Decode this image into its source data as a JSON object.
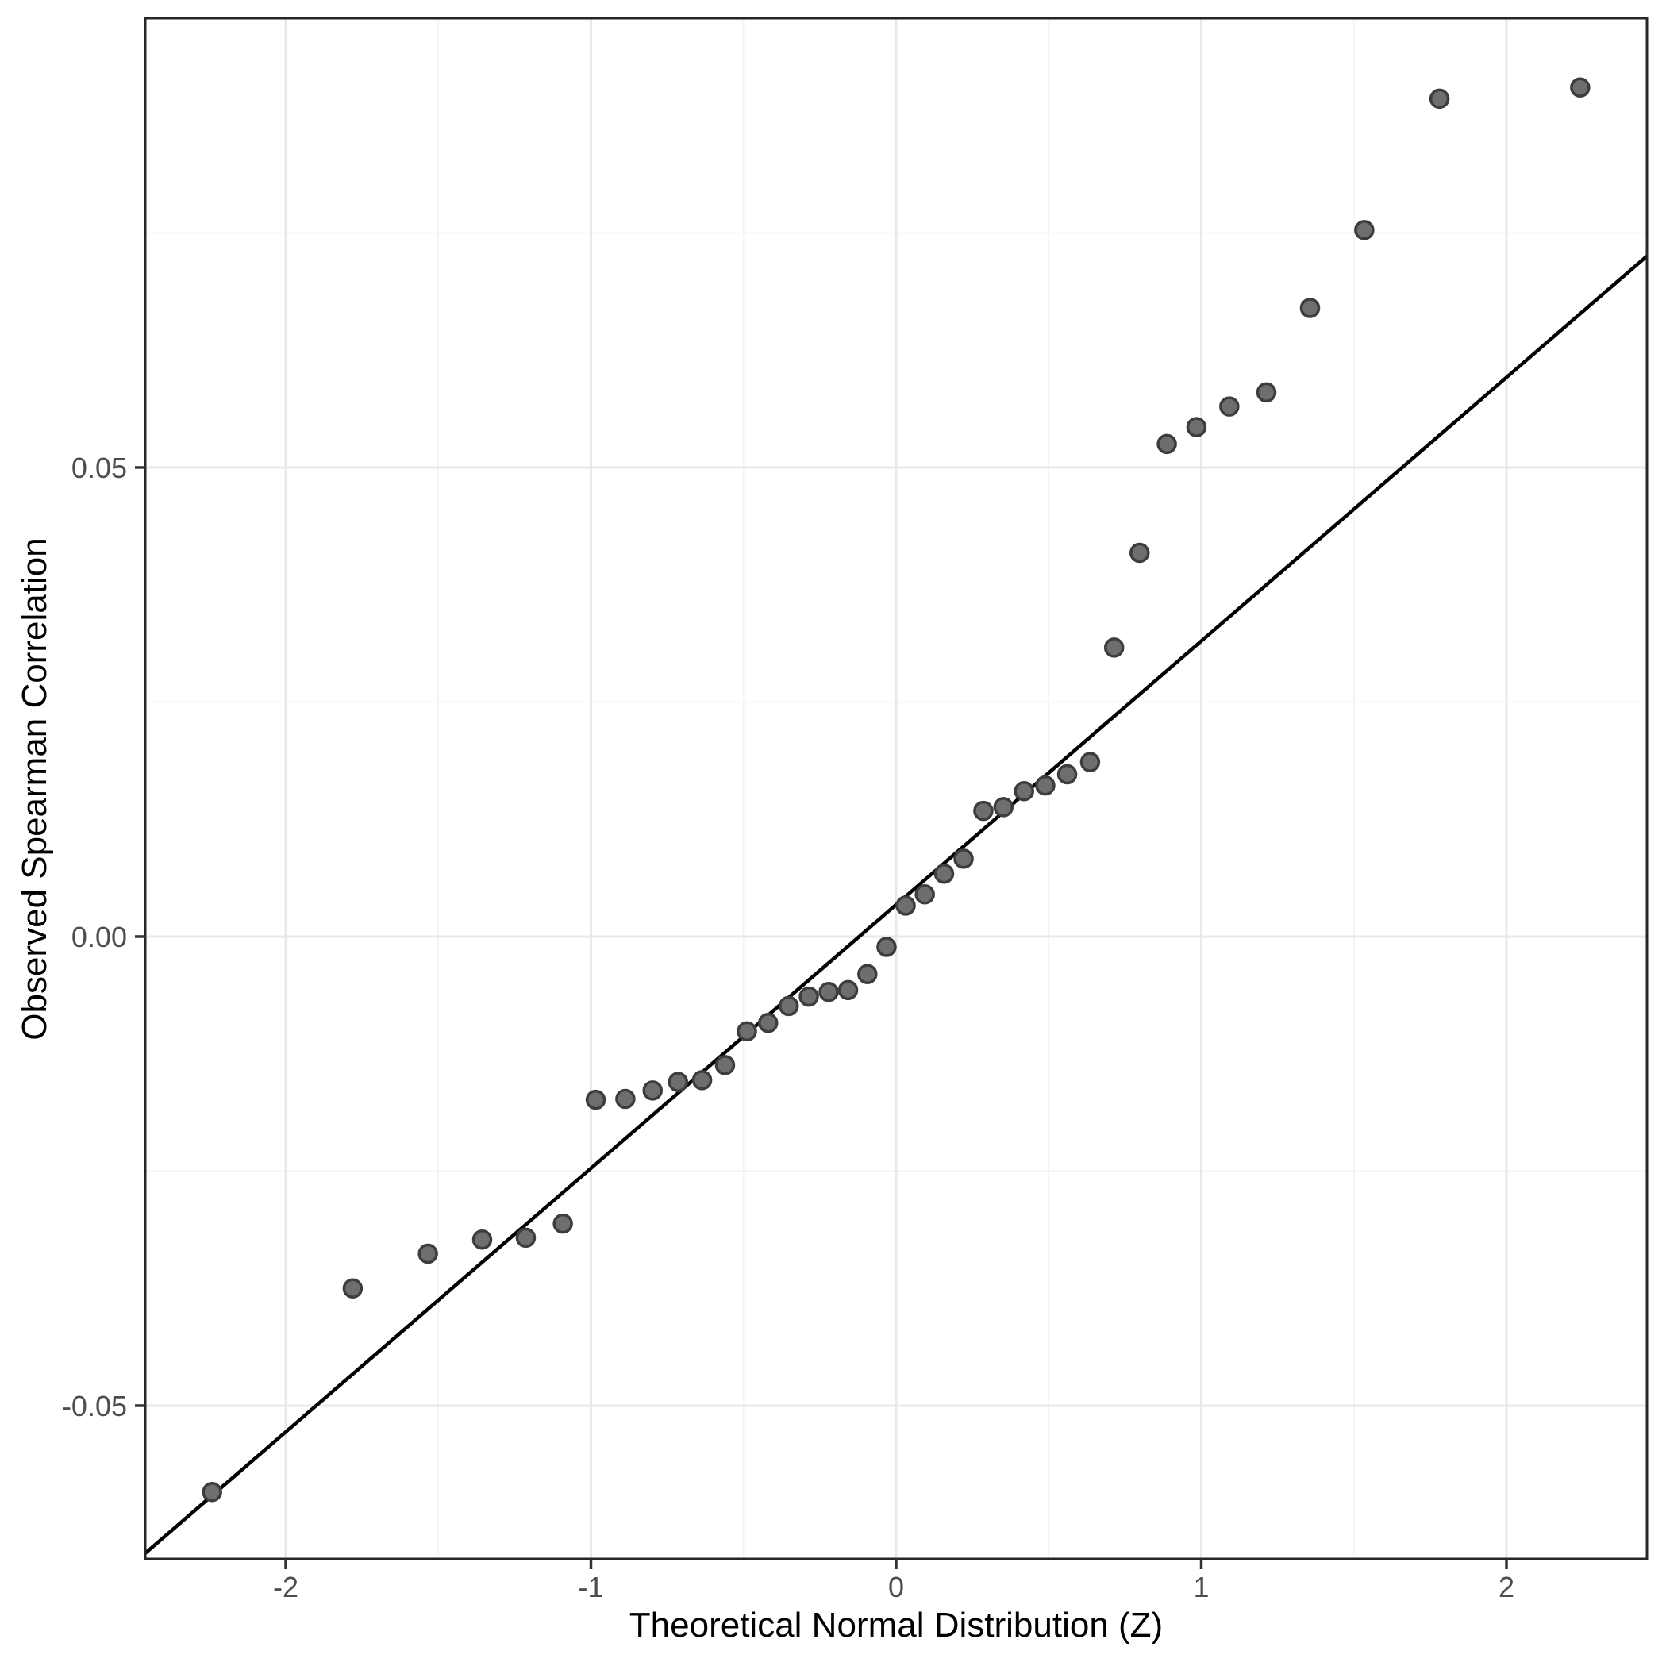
{
  "chart_data": {
    "type": "scatter",
    "title": "",
    "xlabel": "Theoretical Normal Distribution (Z)",
    "ylabel": "Observed Spearman Correlation",
    "xlim": [
      -2.4603,
      2.4603
    ],
    "ylim": [
      -0.06633,
      0.09788
    ],
    "grid": true,
    "legend_position": "none",
    "x_ticks": {
      "values": [
        -2,
        -1,
        0,
        1,
        2
      ],
      "labels": [
        "-2",
        "-1",
        "0",
        "1",
        "2"
      ]
    },
    "y_ticks": {
      "values": [
        0.05,
        0.0,
        -0.05
      ],
      "labels": [
        "0.05",
        "0.00",
        "-0.05"
      ]
    },
    "x_minor_gridlines": [
      -1.5,
      -0.5,
      0.5,
      1.5
    ],
    "y_minor_gridlines": [
      0.075,
      0.025,
      -0.025
    ],
    "series": [
      {
        "name": "qq-points",
        "type": "scatter",
        "x": [
          -2.2414,
          -1.7805,
          -1.5341,
          -1.3563,
          -1.2133,
          -1.0919,
          -0.9842,
          -0.8871,
          -0.7978,
          -0.7144,
          -0.6357,
          -0.5606,
          -0.4888,
          -0.4193,
          -0.3518,
          -0.2859,
          -0.2211,
          -0.1573,
          -0.0941,
          -0.0313,
          0.0313,
          0.0941,
          0.1573,
          0.2211,
          0.2859,
          0.3518,
          0.4193,
          0.4888,
          0.5606,
          0.6357,
          0.7144,
          0.7978,
          0.8871,
          0.9842,
          1.0919,
          1.2133,
          1.3563,
          1.5341,
          1.7805,
          2.2414
        ],
        "y": [
          -0.0592,
          -0.0375,
          -0.0338,
          -0.0323,
          -0.0321,
          -0.0306,
          -0.0174,
          -0.0173,
          -0.0164,
          -0.0155,
          -0.0153,
          -0.0137,
          -0.0101,
          -0.0092,
          -0.0074,
          -0.0064,
          -0.0059,
          -0.0057,
          -0.004,
          -0.0011,
          0.0033,
          0.0045,
          0.0067,
          0.0083,
          0.0134,
          0.0138,
          0.0155,
          0.0161,
          0.0173,
          0.0186,
          0.0308,
          0.0409,
          0.0525,
          0.0543,
          0.0565,
          0.058,
          0.067,
          0.0753,
          0.0893,
          0.0905
        ]
      },
      {
        "name": "qq-reference-line",
        "type": "line",
        "slope": 0.0281,
        "intercept": 0.0034
      }
    ],
    "colors": {
      "background": "#ffffff",
      "panel_background": "#ffffff",
      "panel_border": "#262626",
      "grid_major": "#e8e8e8",
      "grid_minor": "#f3f3f3",
      "point_fill": "#6e6e6e",
      "point_stroke": "#3d3d3d",
      "reference_line": "#000000",
      "tick_mark": "#333333",
      "tick_label": "#4d4d4d",
      "axis_title": "#000000"
    }
  }
}
